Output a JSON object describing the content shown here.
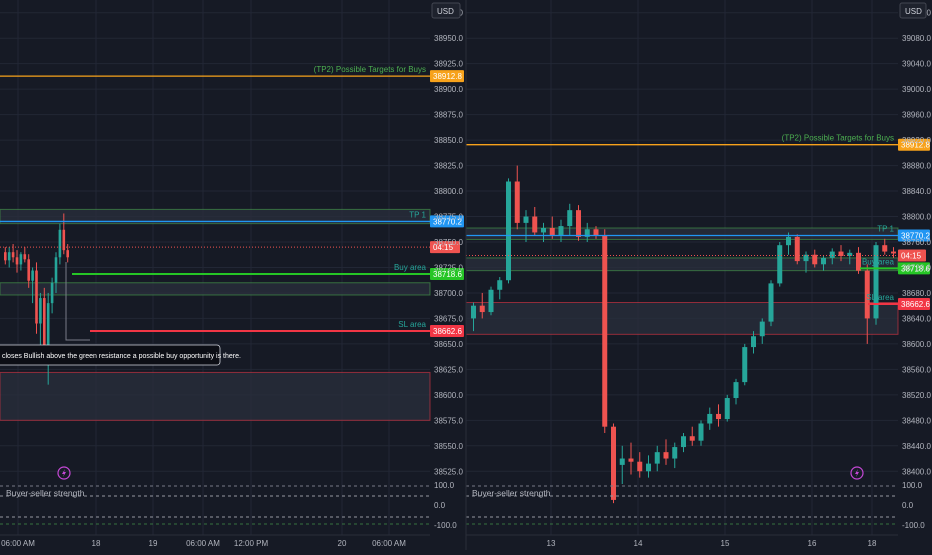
{
  "theme": {
    "background": "#161a25",
    "grid": "#222735",
    "axis_text": "#b2b5be",
    "candle_up": "#26a69a",
    "candle_down": "#ef5350",
    "tp2_line": "#f7a21b",
    "tp1_line": "#2196f3",
    "buy_line": "#26c626",
    "sl_line": "#f23645",
    "zone_fill": "#2a2f3c",
    "zone_border_green": "#4caf50",
    "zone_border_red": "#f23645",
    "price_label_text": "#ffffff",
    "indicator_line": "#787b86",
    "alert_icon_color": "#c548d6"
  },
  "chart_data": [
    {
      "type": "candlestick",
      "panel": "left",
      "currency_button": "USD",
      "y_ticks": [
        "38975.0",
        "38950.0",
        "38925.0",
        "38900.0",
        "38875.0",
        "38850.0",
        "38825.0",
        "38800.0",
        "38775.0",
        "38750.0",
        "38725.0",
        "38700.0",
        "38675.0",
        "38650.0",
        "38625.0",
        "38600.0",
        "38575.0",
        "38550.0",
        "38525.0"
      ],
      "x_ticks": [
        "06:00 AM",
        "18",
        "19",
        "06:00 AM",
        "12:00 PM",
        "20",
        "06:00 AM"
      ],
      "lines": [
        {
          "name": "tp2",
          "price": 38912.8,
          "label": "(TP2) Possible Targets for Buys",
          "badge": "38912.8",
          "color": "#f7a21b"
        },
        {
          "name": "tp1",
          "price": 38770.2,
          "label": "TP 1",
          "badge": "38770.2",
          "color": "#2196f3"
        },
        {
          "name": "buy",
          "price": 38718.6,
          "label": "Buy area",
          "badge": "38718.6",
          "color": "#26c626"
        },
        {
          "name": "sl",
          "price": 38662.6,
          "label": "SL area",
          "badge": "38662.6",
          "color": "#f23645"
        }
      ],
      "countdown_badge": "04:15",
      "annotation": "closes Bullish above the green resistance a possible buy opportunity is there.",
      "candles": [
        [
          38740,
          38745,
          38728,
          38732
        ],
        [
          38732,
          38745,
          38725,
          38740
        ],
        [
          38740,
          38748,
          38730,
          38735
        ],
        [
          38735,
          38742,
          38720,
          38728
        ],
        [
          38728,
          38740,
          38722,
          38738
        ],
        [
          38738,
          38745,
          38730,
          38733
        ],
        [
          38733,
          38738,
          38705,
          38712
        ],
        [
          38712,
          38725,
          38690,
          38722
        ],
        [
          38722,
          38730,
          38660,
          38670
        ],
        [
          38670,
          38700,
          38640,
          38695
        ],
        [
          38695,
          38705,
          38630,
          38640
        ],
        [
          38640,
          38700,
          38610,
          38690
        ],
        [
          38690,
          38715,
          38680,
          38710
        ],
        [
          38710,
          38740,
          38700,
          38735
        ],
        [
          38735,
          38768,
          38728,
          38762
        ],
        [
          38762,
          38778,
          38738,
          38742
        ],
        [
          38742,
          38748,
          38730,
          38735
        ]
      ],
      "indicator": {
        "title": "Buyer-seller strength",
        "y_ticks": [
          "100.0",
          "0.0",
          "-100.0"
        ]
      }
    },
    {
      "type": "candlestick",
      "panel": "right",
      "currency_button": "USD",
      "y_ticks": [
        "39120.0",
        "39080.0",
        "39040.0",
        "39000.0",
        "38960.0",
        "38920.0",
        "38880.0",
        "38840.0",
        "38800.0",
        "38760.0",
        "38720.0",
        "38680.0",
        "38640.0",
        "38600.0",
        "38560.0",
        "38520.0",
        "38480.0",
        "38440.0",
        "38400.0"
      ],
      "x_ticks": [
        "13",
        "14",
        "15",
        "16",
        "18"
      ],
      "lines": [
        {
          "name": "tp2",
          "price": 38912.8,
          "label": "(TP2) Possible Targets for Buys",
          "badge": "38912.8",
          "color": "#f7a21b"
        },
        {
          "name": "tp1",
          "price": 38770.2,
          "label": "TP 1",
          "badge": "38770.2",
          "color": "#2196f3"
        },
        {
          "name": "buy",
          "price": 38718.6,
          "label": "Buy area",
          "badge": "38718.6",
          "color": "#26c626"
        },
        {
          "name": "sl",
          "price": 38662.6,
          "label": "SL area",
          "badge": "38662.6",
          "color": "#f23645"
        }
      ],
      "countdown_badge": "04:15",
      "candles": [
        [
          38640,
          38665,
          38620,
          38660
        ],
        [
          38660,
          38680,
          38640,
          38650
        ],
        [
          38650,
          38690,
          38645,
          38685
        ],
        [
          38685,
          38705,
          38670,
          38700
        ],
        [
          38700,
          38860,
          38695,
          38855
        ],
        [
          38855,
          38880,
          38780,
          38790
        ],
        [
          38790,
          38810,
          38760,
          38800
        ],
        [
          38800,
          38815,
          38770,
          38775
        ],
        [
          38775,
          38790,
          38760,
          38782
        ],
        [
          38782,
          38800,
          38765,
          38770
        ],
        [
          38770,
          38795,
          38760,
          38785
        ],
        [
          38785,
          38820,
          38770,
          38810
        ],
        [
          38810,
          38818,
          38762,
          38768
        ],
        [
          38768,
          38790,
          38760,
          38780
        ],
        [
          38780,
          38785,
          38765,
          38770
        ],
        [
          38770,
          38780,
          38460,
          38470
        ],
        [
          38470,
          38475,
          38350,
          38355
        ],
        [
          38410,
          38440,
          38380,
          38420
        ],
        [
          38420,
          38445,
          38395,
          38415
        ],
        [
          38415,
          38430,
          38390,
          38400
        ],
        [
          38400,
          38425,
          38390,
          38412
        ],
        [
          38412,
          38440,
          38400,
          38430
        ],
        [
          38430,
          38450,
          38410,
          38420
        ],
        [
          38420,
          38445,
          38405,
          38438
        ],
        [
          38438,
          38460,
          38430,
          38455
        ],
        [
          38455,
          38470,
          38440,
          38448
        ],
        [
          38448,
          38480,
          38440,
          38475
        ],
        [
          38475,
          38500,
          38465,
          38490
        ],
        [
          38490,
          38505,
          38470,
          38482
        ],
        [
          38482,
          38520,
          38478,
          38515
        ],
        [
          38515,
          38545,
          38505,
          38540
        ],
        [
          38540,
          38600,
          38535,
          38595
        ],
        [
          38595,
          38620,
          38585,
          38612
        ],
        [
          38612,
          38640,
          38600,
          38635
        ],
        [
          38635,
          38700,
          38628,
          38695
        ],
        [
          38695,
          38760,
          38690,
          38755
        ],
        [
          38755,
          38775,
          38740,
          38768
        ],
        [
          38768,
          38772,
          38725,
          38730
        ],
        [
          38730,
          38745,
          38712,
          38740
        ],
        [
          38740,
          38748,
          38720,
          38725
        ],
        [
          38725,
          38738,
          38715,
          38735
        ],
        [
          38735,
          38750,
          38725,
          38745
        ],
        [
          38745,
          38755,
          38730,
          38738
        ],
        [
          38738,
          38748,
          38725,
          38743
        ],
        [
          38743,
          38752,
          38710,
          38715
        ],
        [
          38715,
          38725,
          38600,
          38640
        ],
        [
          38640,
          38760,
          38630,
          38755
        ],
        [
          38755,
          38765,
          38740,
          38745
        ],
        [
          38745,
          38752,
          38735,
          38742
        ]
      ],
      "indicator": {
        "title": "Buyer-seller strength",
        "y_ticks": [
          "100.0",
          "0.0",
          "-100.0"
        ]
      }
    }
  ]
}
